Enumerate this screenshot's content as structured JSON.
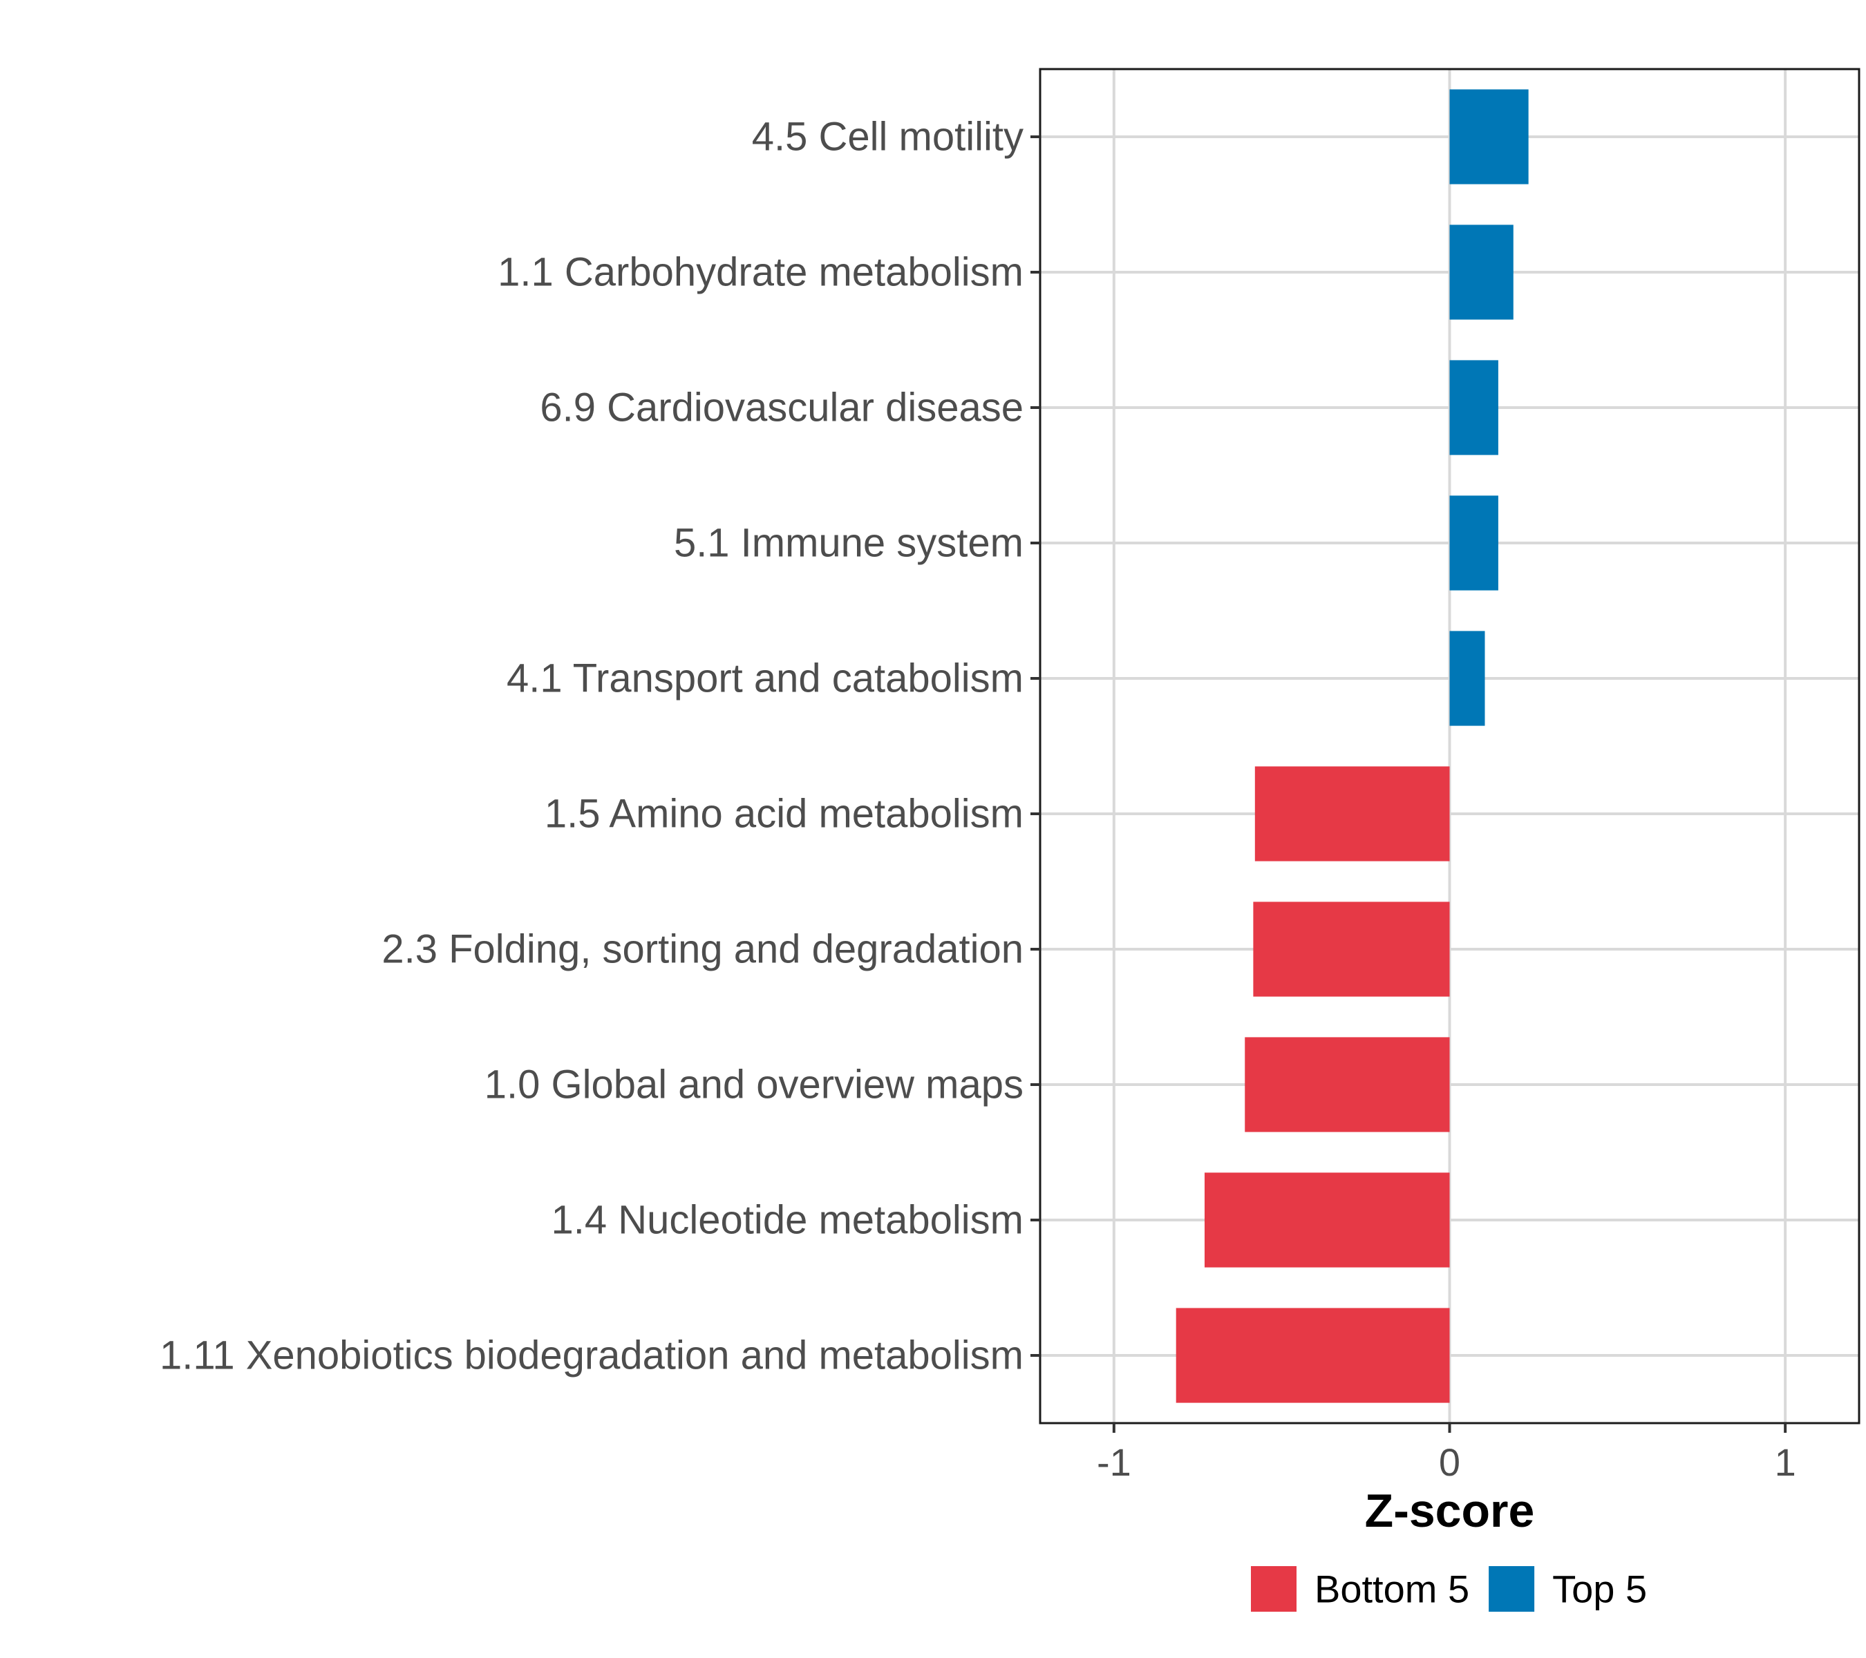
{
  "chart_data": {
    "type": "bar",
    "orientation": "horizontal",
    "title": "",
    "xlabel": "Z-score",
    "ylabel": "",
    "xlim": [
      -1.22,
      1.22
    ],
    "xticks": [
      {
        "value": -1,
        "label": "-1"
      },
      {
        "value": 0,
        "label": "0"
      },
      {
        "value": 1,
        "label": "1"
      }
    ],
    "grid": true,
    "legend_position": "bottom",
    "categories": [
      "4.5 Cell motility",
      "1.1 Carbohydrate metabolism",
      "6.9 Cardiovascular disease",
      "5.1 Immune system",
      "4.1 Transport and catabolism",
      "1.5 Amino acid metabolism",
      "2.3 Folding, sorting and degradation",
      "1.0 Global and overview maps",
      "1.4 Nucleotide metabolism",
      "1.11 Xenobiotics biodegradation and metabolism"
    ],
    "values": [
      0.235,
      0.19,
      0.145,
      0.145,
      0.105,
      -0.58,
      -0.585,
      -0.61,
      -0.73,
      -0.815
    ],
    "groups": [
      "Top 5",
      "Top 5",
      "Top 5",
      "Top 5",
      "Top 5",
      "Bottom 5",
      "Bottom 5",
      "Bottom 5",
      "Bottom 5",
      "Bottom 5"
    ],
    "legend": [
      {
        "name": "Bottom 5",
        "color": "#e63946"
      },
      {
        "name": "Top 5",
        "color": "#0077b6"
      }
    ]
  }
}
